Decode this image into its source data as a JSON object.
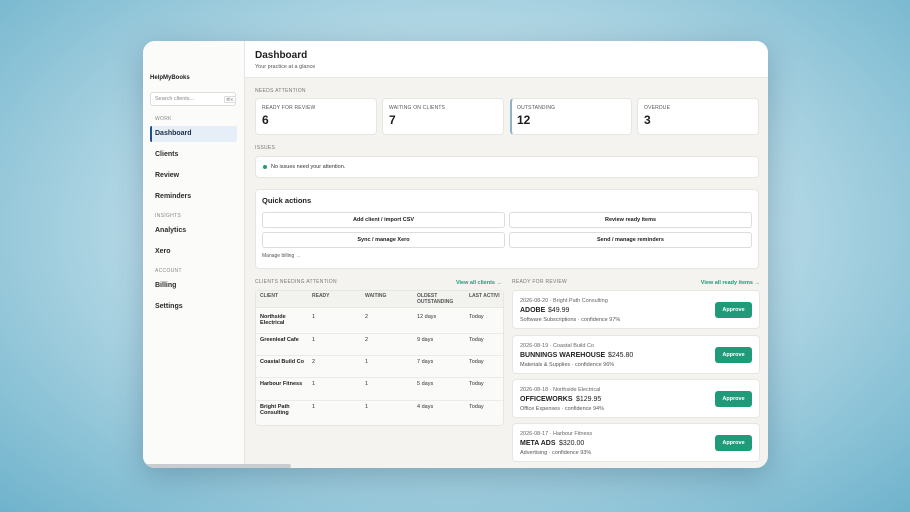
{
  "sidebar": {
    "brand": "HelpMyBooks",
    "search_placeholder": "Search clients...",
    "search_shortcut": "⌘K",
    "sections": [
      {
        "label": "WORK",
        "items": [
          "Dashboard",
          "Clients",
          "Review",
          "Reminders"
        ]
      },
      {
        "label": "INSIGHTS",
        "items": [
          "Analytics",
          "Xero"
        ]
      },
      {
        "label": "ACCOUNT",
        "items": [
          "Billing",
          "Settings"
        ]
      }
    ]
  },
  "header": {
    "title": "Dashboard",
    "subtitle": "Your practice at a glance"
  },
  "needs_attention": {
    "label": "NEEDS ATTENTION",
    "cards": [
      {
        "label": "READY FOR REVIEW",
        "value": 6
      },
      {
        "label": "WAITING ON CLIENTS",
        "value": 7
      },
      {
        "label": "OUTSTANDING",
        "value": 12
      },
      {
        "label": "OVERDUE",
        "value": 3
      }
    ]
  },
  "issues": {
    "label": "ISSUES",
    "message": "No issues need your attention."
  },
  "quick_actions": {
    "title": "Quick actions",
    "buttons": [
      "Add client / import CSV",
      "Review ready items",
      "Sync / manage Xero",
      "Send / manage reminders"
    ],
    "link": "Manage billing →"
  },
  "clients": {
    "label": "CLIENTS NEEDING ATTENTION",
    "link": "View all clients →",
    "columns": [
      "CLIENT",
      "READY",
      "WAITING",
      "OLDEST OUTSTANDING",
      "LAST ACTIVI"
    ],
    "rows": [
      [
        "Northside Electrical",
        1,
        2,
        "12 days",
        "Today"
      ],
      [
        "Greenleaf Cafe",
        1,
        2,
        "9 days",
        "Today"
      ],
      [
        "Coastal Build Co",
        2,
        1,
        "7 days",
        "Today"
      ],
      [
        "Harbour Fitness",
        1,
        1,
        "5 days",
        "Today"
      ],
      [
        "Bright Path Consulting",
        1,
        1,
        "4 days",
        "Today"
      ]
    ]
  },
  "ready_for_review": {
    "label": "READY FOR REVIEW",
    "link": "View all ready items →",
    "items": [
      {
        "meta": "2026-08-20 · Bright Path Consulting",
        "vendor": "ADOBE",
        "amount": "$49.99",
        "detail": "Software Subscriptions · confidence 97%",
        "action": "Approve"
      },
      {
        "meta": "2026-08-19 · Coastal Build Co",
        "vendor": "BUNNINGS WAREHOUSE",
        "amount": "$245.80",
        "detail": "Materials & Supplies · confidence 96%",
        "action": "Approve"
      },
      {
        "meta": "2026-08-18 · Northside Electrical",
        "vendor": "OFFICEWORKS",
        "amount": "$129.95",
        "detail": "Office Expenses · confidence 94%",
        "action": "Approve"
      },
      {
        "meta": "2026-08-17 · Harbour Fitness",
        "vendor": "META ADS",
        "amount": "$320.00",
        "detail": "Advertising · confidence 93%",
        "action": "Approve"
      }
    ]
  }
}
